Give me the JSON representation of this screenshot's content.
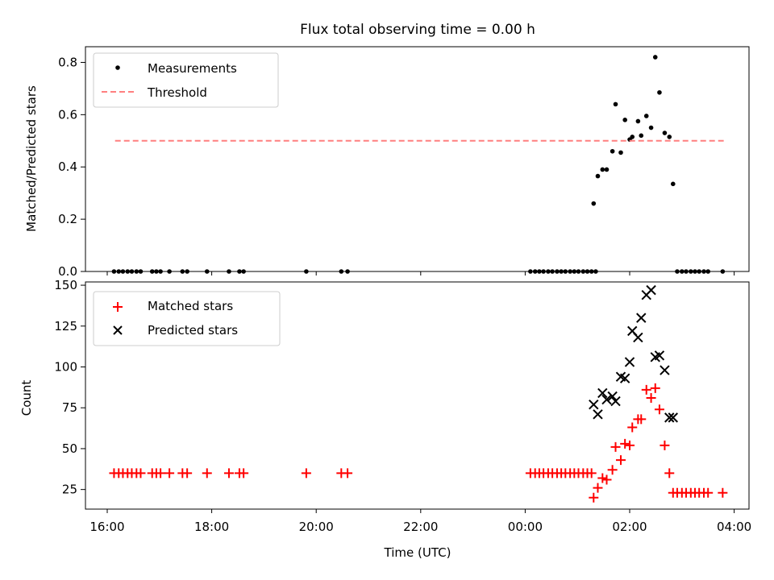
{
  "title": "Flux total observing time = 0.00 h",
  "xlabel": "Time (UTC)",
  "xtick_labels": [
    "16:00",
    "18:00",
    "20:00",
    "22:00",
    "00:00",
    "02:00",
    "04:00"
  ],
  "colors": {
    "measurement": "#000000",
    "threshold": "#ff7f7f",
    "matched": "#ff0000",
    "predicted": "#000000"
  },
  "chart_data": [
    {
      "type": "scatter",
      "ylabel": "Matched/Predicted stars",
      "ylim": [
        0,
        0.86
      ],
      "yticks": [
        "0.0",
        "0.2",
        "0.4",
        "0.6",
        "0.8"
      ],
      "legend": {
        "position": "top-left",
        "entries": [
          "Measurements",
          "Threshold"
        ]
      },
      "series": [
        {
          "name": "Measurements",
          "marker": "dot",
          "x_hours": [
            16.13,
            16.22,
            16.3,
            16.39,
            16.47,
            16.56,
            16.64,
            16.86,
            16.94,
            17.02,
            17.19,
            17.44,
            17.53,
            17.91,
            18.33,
            18.53,
            18.61,
            19.81,
            20.48,
            20.6,
            24.1,
            24.19,
            24.27,
            24.35,
            24.44,
            24.52,
            24.61,
            24.69,
            24.77,
            24.86,
            24.94,
            25.02,
            25.11,
            25.19,
            25.27,
            25.35,
            25.31,
            25.39,
            25.48,
            25.56,
            25.67,
            25.73,
            25.83,
            25.91,
            26.0,
            26.05,
            26.16,
            26.22,
            26.32,
            26.41,
            26.49,
            26.57,
            26.67,
            26.76,
            26.83,
            26.91,
            27.0,
            27.08,
            27.17,
            27.25,
            27.33,
            27.42,
            27.5,
            27.78
          ],
          "y": [
            0,
            0,
            0,
            0,
            0,
            0,
            0,
            0,
            0,
            0,
            0,
            0,
            0,
            0,
            0,
            0,
            0,
            0,
            0,
            0,
            0,
            0,
            0,
            0,
            0,
            0,
            0,
            0,
            0,
            0,
            0,
            0,
            0,
            0,
            0,
            0,
            0.26,
            0.365,
            0.39,
            0.39,
            0.46,
            0.64,
            0.455,
            0.58,
            0.505,
            0.515,
            0.575,
            0.52,
            0.595,
            0.55,
            0.82,
            0.685,
            0.53,
            0.515,
            0.335,
            0,
            0,
            0,
            0,
            0,
            0,
            0,
            0,
            0
          ]
        },
        {
          "name": "Threshold",
          "line": "dashed",
          "x_hours": [
            16.15,
            27.8
          ],
          "y": [
            0.5,
            0.5
          ]
        }
      ]
    },
    {
      "type": "scatter",
      "ylabel": "Count",
      "ylim": [
        13,
        152
      ],
      "yticks": [
        "25",
        "50",
        "75",
        "100",
        "125",
        "150"
      ],
      "legend": {
        "position": "top-left",
        "entries": [
          "Matched stars",
          "Predicted stars"
        ]
      },
      "series": [
        {
          "name": "Matched stars",
          "marker": "plus",
          "x_hours": [
            16.13,
            16.22,
            16.3,
            16.39,
            16.47,
            16.56,
            16.64,
            16.86,
            16.94,
            17.02,
            17.19,
            17.44,
            17.53,
            17.91,
            18.33,
            18.53,
            18.61,
            19.81,
            20.48,
            20.6,
            24.1,
            24.19,
            24.27,
            24.35,
            24.44,
            24.52,
            24.61,
            24.69,
            24.77,
            24.86,
            24.94,
            25.02,
            25.11,
            25.19,
            25.27,
            25.31,
            25.39,
            25.48,
            25.56,
            25.67,
            25.73,
            25.83,
            25.91,
            26.0,
            26.05,
            26.16,
            26.22,
            26.32,
            26.41,
            26.49,
            26.57,
            26.67,
            26.76,
            26.83,
            26.91,
            27.0,
            27.08,
            27.17,
            27.25,
            27.33,
            27.42,
            27.5,
            27.78
          ],
          "y": [
            35,
            35,
            35,
            35,
            35,
            35,
            35,
            35,
            35,
            35,
            35,
            35,
            35,
            35,
            35,
            35,
            35,
            35,
            35,
            35,
            35,
            35,
            35,
            35,
            35,
            35,
            35,
            35,
            35,
            35,
            35,
            35,
            35,
            35,
            35,
            20,
            26,
            32,
            31,
            37,
            51,
            43,
            53,
            52,
            63,
            68,
            68,
            86,
            81,
            87,
            74,
            52,
            35,
            23,
            23,
            23,
            23,
            23,
            23,
            23,
            23,
            23,
            23
          ]
        },
        {
          "name": "Predicted stars",
          "marker": "x",
          "x_hours": [
            25.31,
            25.39,
            25.48,
            25.56,
            25.67,
            25.73,
            25.83,
            25.91,
            26.0,
            26.05,
            26.16,
            26.22,
            26.32,
            26.41,
            26.49,
            26.57,
            26.67,
            26.76,
            26.83
          ],
          "y": [
            77,
            71,
            84,
            80,
            82,
            79,
            94,
            93,
            103,
            122,
            118,
            130,
            144,
            147,
            106,
            107,
            98,
            69,
            69
          ]
        }
      ]
    }
  ]
}
